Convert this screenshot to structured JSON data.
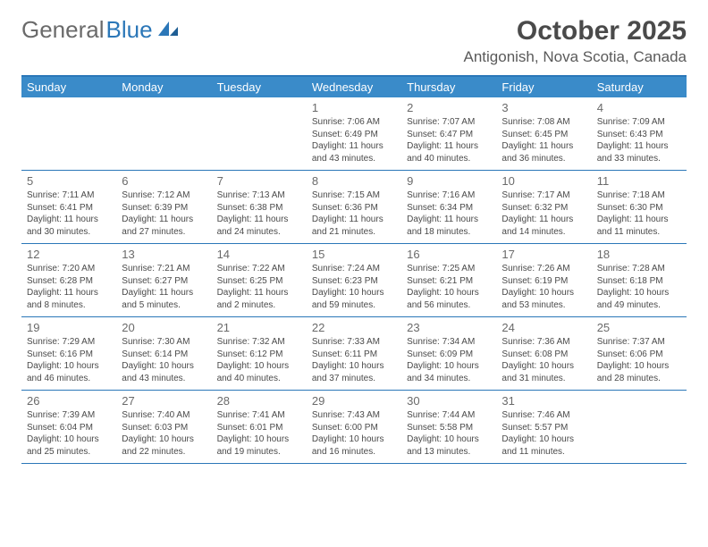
{
  "brand": {
    "part1": "General",
    "part2": "Blue"
  },
  "title": "October 2025",
  "location": "Antigonish, Nova Scotia, Canada",
  "colors": {
    "header_bg": "#3a8bc9",
    "header_text": "#ffffff",
    "accent": "#2b77b8",
    "body_text": "#4a4a4a",
    "muted_text": "#6a6a6a",
    "background": "#ffffff"
  },
  "typography": {
    "title_fontsize": 30,
    "location_fontsize": 17,
    "dayheader_fontsize": 13,
    "daynum_fontsize": 13,
    "cell_fontsize": 10
  },
  "layout": {
    "columns": 7,
    "cell_min_height": 78
  },
  "day_names": [
    "Sunday",
    "Monday",
    "Tuesday",
    "Wednesday",
    "Thursday",
    "Friday",
    "Saturday"
  ],
  "weeks": [
    [
      {
        "n": "",
        "sr": "",
        "ss": "",
        "dl": ""
      },
      {
        "n": "",
        "sr": "",
        "ss": "",
        "dl": ""
      },
      {
        "n": "",
        "sr": "",
        "ss": "",
        "dl": ""
      },
      {
        "n": "1",
        "sr": "Sunrise: 7:06 AM",
        "ss": "Sunset: 6:49 PM",
        "dl": "Daylight: 11 hours and 43 minutes."
      },
      {
        "n": "2",
        "sr": "Sunrise: 7:07 AM",
        "ss": "Sunset: 6:47 PM",
        "dl": "Daylight: 11 hours and 40 minutes."
      },
      {
        "n": "3",
        "sr": "Sunrise: 7:08 AM",
        "ss": "Sunset: 6:45 PM",
        "dl": "Daylight: 11 hours and 36 minutes."
      },
      {
        "n": "4",
        "sr": "Sunrise: 7:09 AM",
        "ss": "Sunset: 6:43 PM",
        "dl": "Daylight: 11 hours and 33 minutes."
      }
    ],
    [
      {
        "n": "5",
        "sr": "Sunrise: 7:11 AM",
        "ss": "Sunset: 6:41 PM",
        "dl": "Daylight: 11 hours and 30 minutes."
      },
      {
        "n": "6",
        "sr": "Sunrise: 7:12 AM",
        "ss": "Sunset: 6:39 PM",
        "dl": "Daylight: 11 hours and 27 minutes."
      },
      {
        "n": "7",
        "sr": "Sunrise: 7:13 AM",
        "ss": "Sunset: 6:38 PM",
        "dl": "Daylight: 11 hours and 24 minutes."
      },
      {
        "n": "8",
        "sr": "Sunrise: 7:15 AM",
        "ss": "Sunset: 6:36 PM",
        "dl": "Daylight: 11 hours and 21 minutes."
      },
      {
        "n": "9",
        "sr": "Sunrise: 7:16 AM",
        "ss": "Sunset: 6:34 PM",
        "dl": "Daylight: 11 hours and 18 minutes."
      },
      {
        "n": "10",
        "sr": "Sunrise: 7:17 AM",
        "ss": "Sunset: 6:32 PM",
        "dl": "Daylight: 11 hours and 14 minutes."
      },
      {
        "n": "11",
        "sr": "Sunrise: 7:18 AM",
        "ss": "Sunset: 6:30 PM",
        "dl": "Daylight: 11 hours and 11 minutes."
      }
    ],
    [
      {
        "n": "12",
        "sr": "Sunrise: 7:20 AM",
        "ss": "Sunset: 6:28 PM",
        "dl": "Daylight: 11 hours and 8 minutes."
      },
      {
        "n": "13",
        "sr": "Sunrise: 7:21 AM",
        "ss": "Sunset: 6:27 PM",
        "dl": "Daylight: 11 hours and 5 minutes."
      },
      {
        "n": "14",
        "sr": "Sunrise: 7:22 AM",
        "ss": "Sunset: 6:25 PM",
        "dl": "Daylight: 11 hours and 2 minutes."
      },
      {
        "n": "15",
        "sr": "Sunrise: 7:24 AM",
        "ss": "Sunset: 6:23 PM",
        "dl": "Daylight: 10 hours and 59 minutes."
      },
      {
        "n": "16",
        "sr": "Sunrise: 7:25 AM",
        "ss": "Sunset: 6:21 PM",
        "dl": "Daylight: 10 hours and 56 minutes."
      },
      {
        "n": "17",
        "sr": "Sunrise: 7:26 AM",
        "ss": "Sunset: 6:19 PM",
        "dl": "Daylight: 10 hours and 53 minutes."
      },
      {
        "n": "18",
        "sr": "Sunrise: 7:28 AM",
        "ss": "Sunset: 6:18 PM",
        "dl": "Daylight: 10 hours and 49 minutes."
      }
    ],
    [
      {
        "n": "19",
        "sr": "Sunrise: 7:29 AM",
        "ss": "Sunset: 6:16 PM",
        "dl": "Daylight: 10 hours and 46 minutes."
      },
      {
        "n": "20",
        "sr": "Sunrise: 7:30 AM",
        "ss": "Sunset: 6:14 PM",
        "dl": "Daylight: 10 hours and 43 minutes."
      },
      {
        "n": "21",
        "sr": "Sunrise: 7:32 AM",
        "ss": "Sunset: 6:12 PM",
        "dl": "Daylight: 10 hours and 40 minutes."
      },
      {
        "n": "22",
        "sr": "Sunrise: 7:33 AM",
        "ss": "Sunset: 6:11 PM",
        "dl": "Daylight: 10 hours and 37 minutes."
      },
      {
        "n": "23",
        "sr": "Sunrise: 7:34 AM",
        "ss": "Sunset: 6:09 PM",
        "dl": "Daylight: 10 hours and 34 minutes."
      },
      {
        "n": "24",
        "sr": "Sunrise: 7:36 AM",
        "ss": "Sunset: 6:08 PM",
        "dl": "Daylight: 10 hours and 31 minutes."
      },
      {
        "n": "25",
        "sr": "Sunrise: 7:37 AM",
        "ss": "Sunset: 6:06 PM",
        "dl": "Daylight: 10 hours and 28 minutes."
      }
    ],
    [
      {
        "n": "26",
        "sr": "Sunrise: 7:39 AM",
        "ss": "Sunset: 6:04 PM",
        "dl": "Daylight: 10 hours and 25 minutes."
      },
      {
        "n": "27",
        "sr": "Sunrise: 7:40 AM",
        "ss": "Sunset: 6:03 PM",
        "dl": "Daylight: 10 hours and 22 minutes."
      },
      {
        "n": "28",
        "sr": "Sunrise: 7:41 AM",
        "ss": "Sunset: 6:01 PM",
        "dl": "Daylight: 10 hours and 19 minutes."
      },
      {
        "n": "29",
        "sr": "Sunrise: 7:43 AM",
        "ss": "Sunset: 6:00 PM",
        "dl": "Daylight: 10 hours and 16 minutes."
      },
      {
        "n": "30",
        "sr": "Sunrise: 7:44 AM",
        "ss": "Sunset: 5:58 PM",
        "dl": "Daylight: 10 hours and 13 minutes."
      },
      {
        "n": "31",
        "sr": "Sunrise: 7:46 AM",
        "ss": "Sunset: 5:57 PM",
        "dl": "Daylight: 10 hours and 11 minutes."
      },
      {
        "n": "",
        "sr": "",
        "ss": "",
        "dl": ""
      }
    ]
  ]
}
